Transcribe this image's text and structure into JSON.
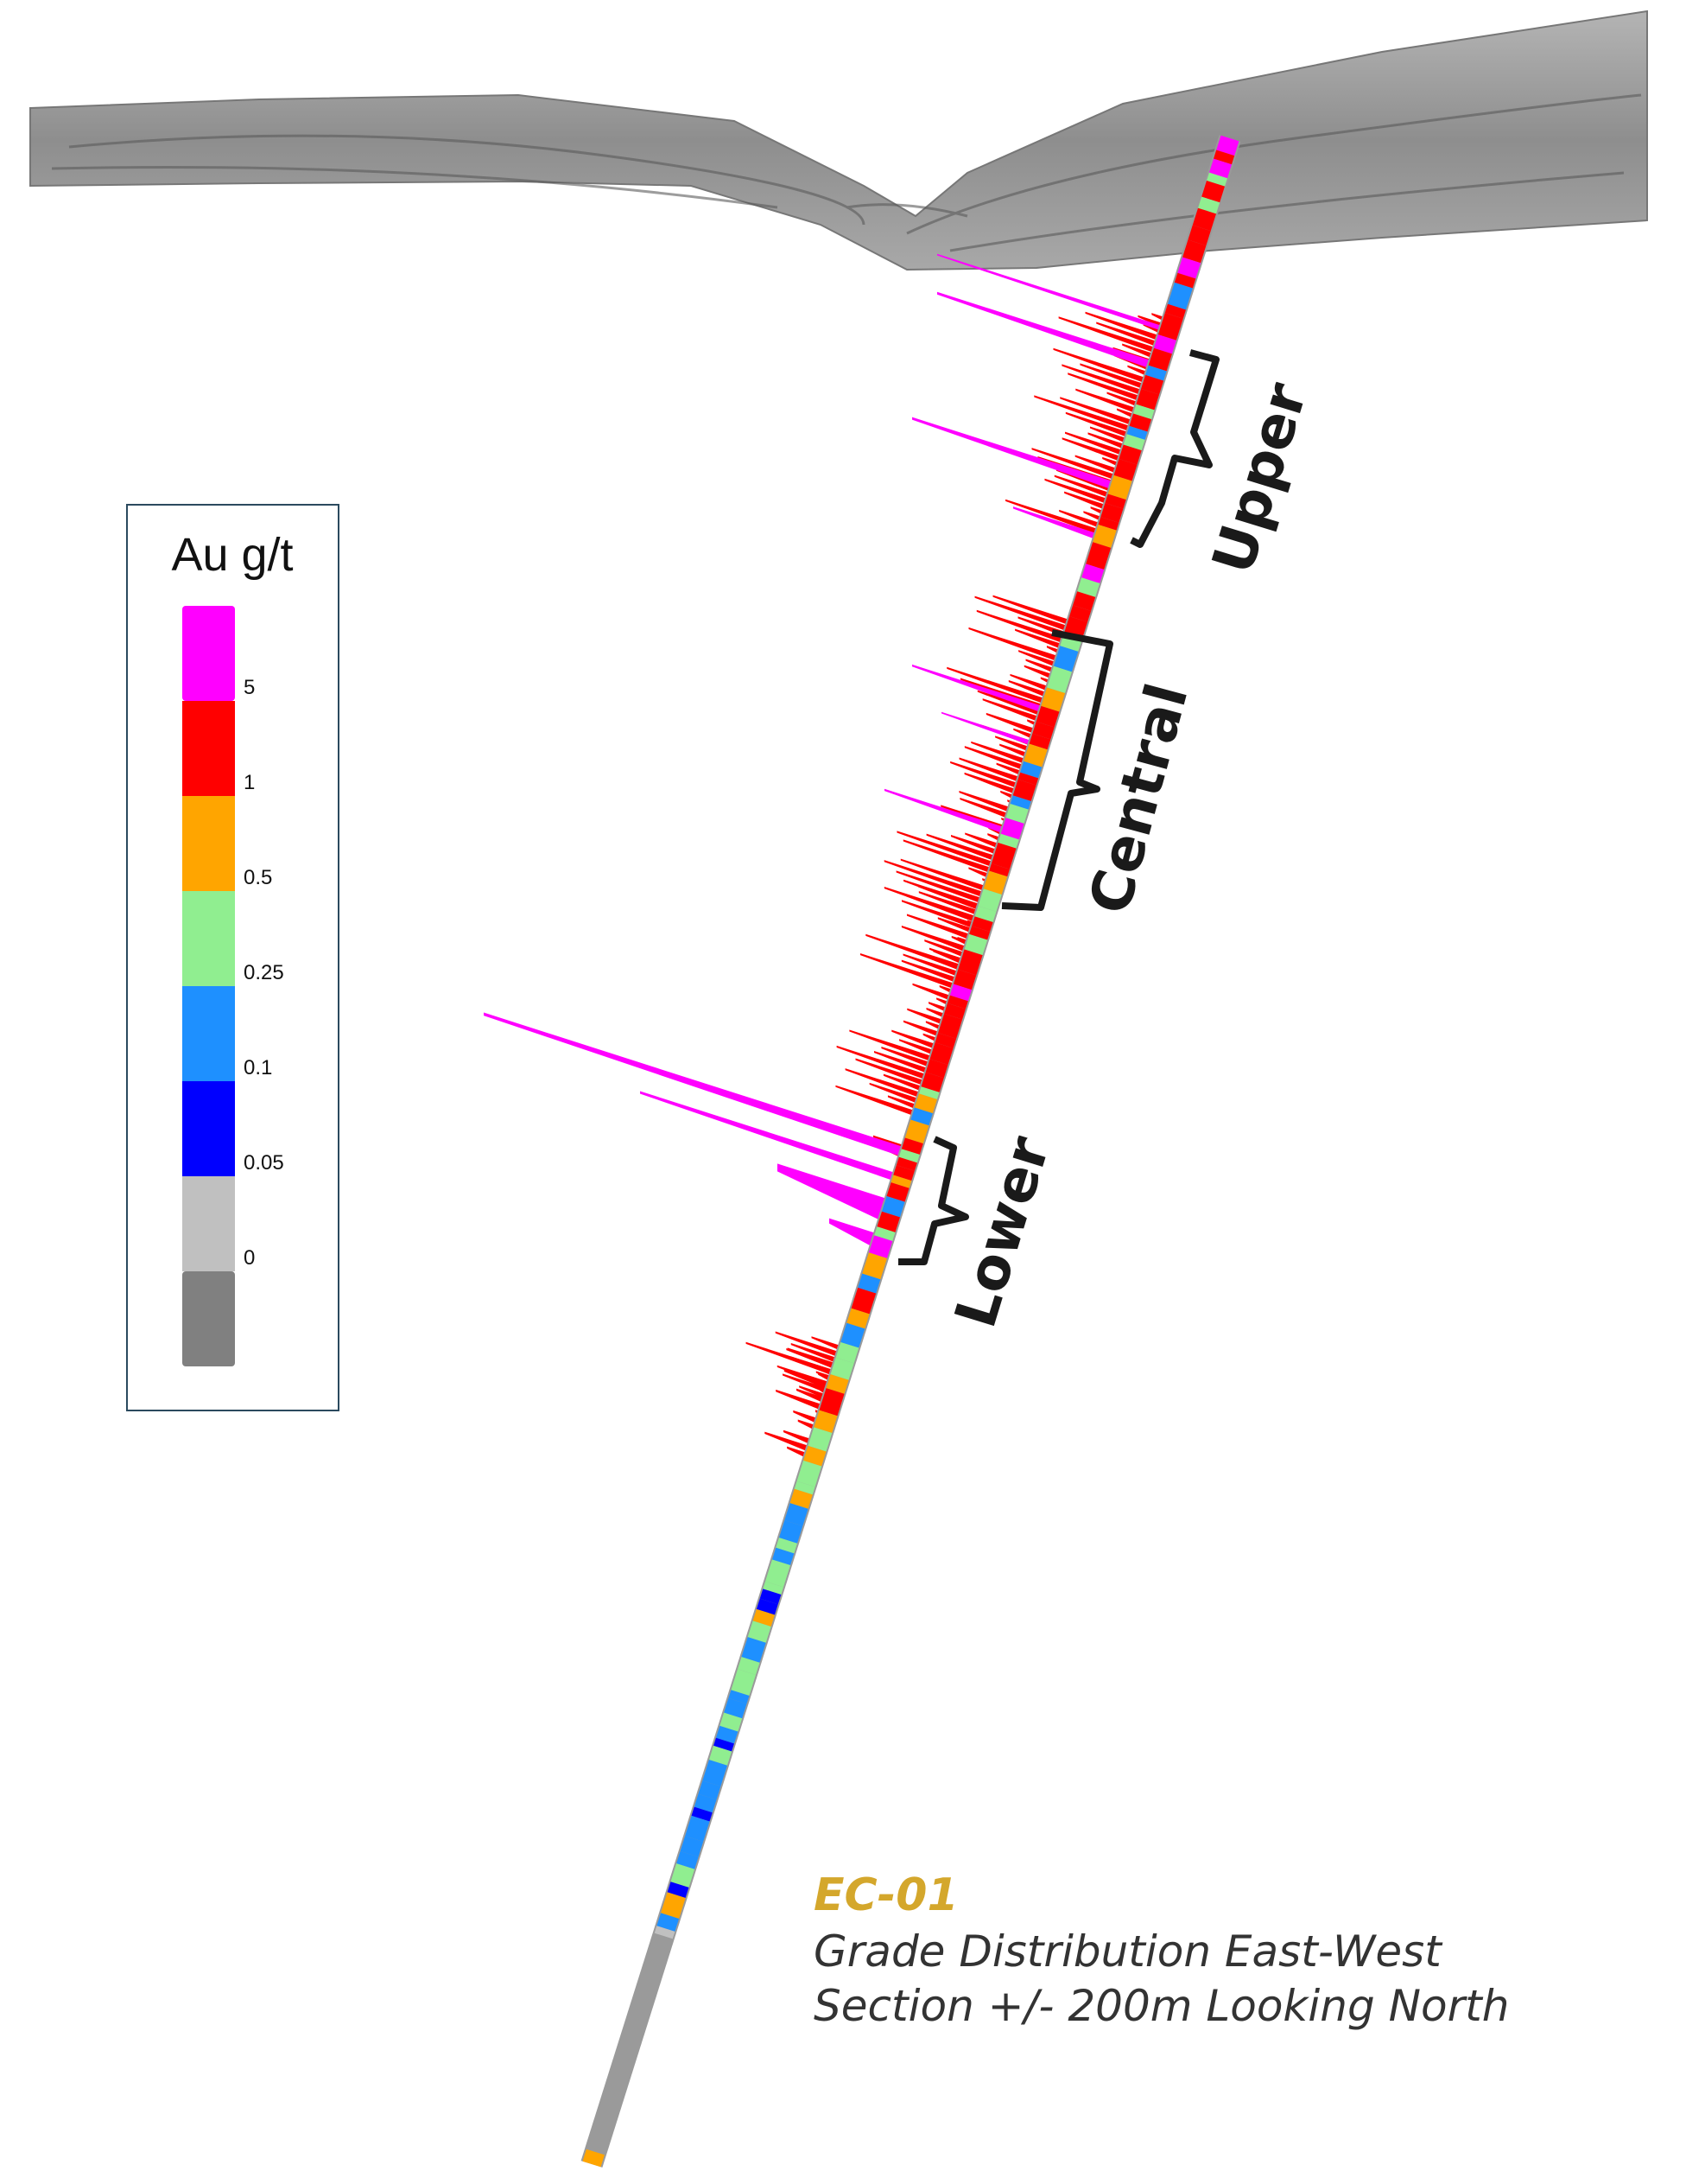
{
  "legend": {
    "title": "Au g/t",
    "labels": [
      "5",
      "1",
      "0.5",
      "0.25",
      "0.1",
      "0.05",
      "0"
    ]
  },
  "zones": [
    "Upper",
    "Central",
    "Lower"
  ],
  "caption": {
    "id": "EC-01",
    "lines": [
      "Grade Distribution East-West",
      "Section +/- 200m Looking North"
    ]
  }
}
